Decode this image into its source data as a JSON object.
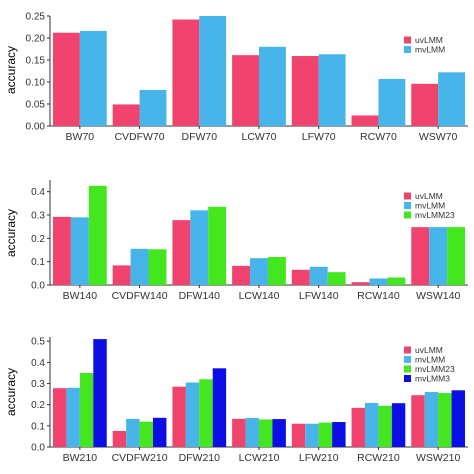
{
  "colors": {
    "uvLMM": "#f0446e",
    "mvLMM": "#47b4ea",
    "mvLMM23": "#44e61e",
    "mvLMM3": "#0c0ee6"
  },
  "chart_data": [
    {
      "type": "bar",
      "ylabel": "accuracy",
      "xlabel": "",
      "ylim": [
        0,
        0.25
      ],
      "yticks": [
        "0.00",
        "0.05",
        "0.10",
        "0.15",
        "0.20",
        "0.25"
      ],
      "grid": false,
      "legend_position": "right",
      "categories": [
        "BW70",
        "CVDFW70",
        "DFW70",
        "LCW70",
        "LFW70",
        "RCW70",
        "WSW70"
      ],
      "series": [
        {
          "name": "uvLMM",
          "color": "#f0446e",
          "values": [
            0.212,
            0.049,
            0.242,
            0.161,
            0.159,
            0.024,
            0.096
          ]
        },
        {
          "name": "mvLMM",
          "color": "#47b4ea",
          "values": [
            0.216,
            0.082,
            0.25,
            0.18,
            0.163,
            0.107,
            0.122
          ]
        }
      ]
    },
    {
      "type": "bar",
      "ylabel": "accuracy",
      "xlabel": "",
      "ylim": [
        0,
        0.45
      ],
      "yticks": [
        "0.0",
        "0.1",
        "0.2",
        "0.3",
        "0.4"
      ],
      "grid": false,
      "legend_position": "right",
      "categories": [
        "BW140",
        "CVDFW140",
        "DFW140",
        "LCW140",
        "LFW140",
        "RCW140",
        "WSW140"
      ],
      "series": [
        {
          "name": "uvLMM",
          "color": "#f0446e",
          "values": [
            0.292,
            0.084,
            0.278,
            0.082,
            0.065,
            0.012,
            0.248
          ]
        },
        {
          "name": "mvLMM",
          "color": "#47b4ea",
          "values": [
            0.29,
            0.155,
            0.32,
            0.115,
            0.078,
            0.028,
            0.248
          ]
        },
        {
          "name": "mvLMM23",
          "color": "#44e61e",
          "values": [
            0.425,
            0.153,
            0.335,
            0.12,
            0.055,
            0.032,
            0.248
          ]
        }
      ]
    },
    {
      "type": "bar",
      "ylabel": "accuracy",
      "xlabel": "",
      "ylim": [
        0,
        0.52
      ],
      "yticks": [
        "0.0",
        "0.1",
        "0.2",
        "0.3",
        "0.4",
        "0.5"
      ],
      "grid": false,
      "legend_position": "right",
      "categories": [
        "BW210",
        "CVDFW210",
        "DFW210",
        "LCW210",
        "LFW210",
        "RCW210",
        "WSW210"
      ],
      "series": [
        {
          "name": "uvLMM",
          "color": "#f0446e",
          "values": [
            0.278,
            0.076,
            0.285,
            0.133,
            0.11,
            0.185,
            0.245
          ]
        },
        {
          "name": "mvLMM",
          "color": "#47b4ea",
          "values": [
            0.28,
            0.133,
            0.305,
            0.137,
            0.11,
            0.208,
            0.26
          ]
        },
        {
          "name": "mvLMM23",
          "color": "#44e61e",
          "values": [
            0.35,
            0.12,
            0.32,
            0.13,
            0.115,
            0.195,
            0.255
          ]
        },
        {
          "name": "mvLMM3",
          "color": "#0c0ee6",
          "values": [
            0.51,
            0.138,
            0.372,
            0.132,
            0.118,
            0.207,
            0.268
          ]
        }
      ]
    }
  ]
}
